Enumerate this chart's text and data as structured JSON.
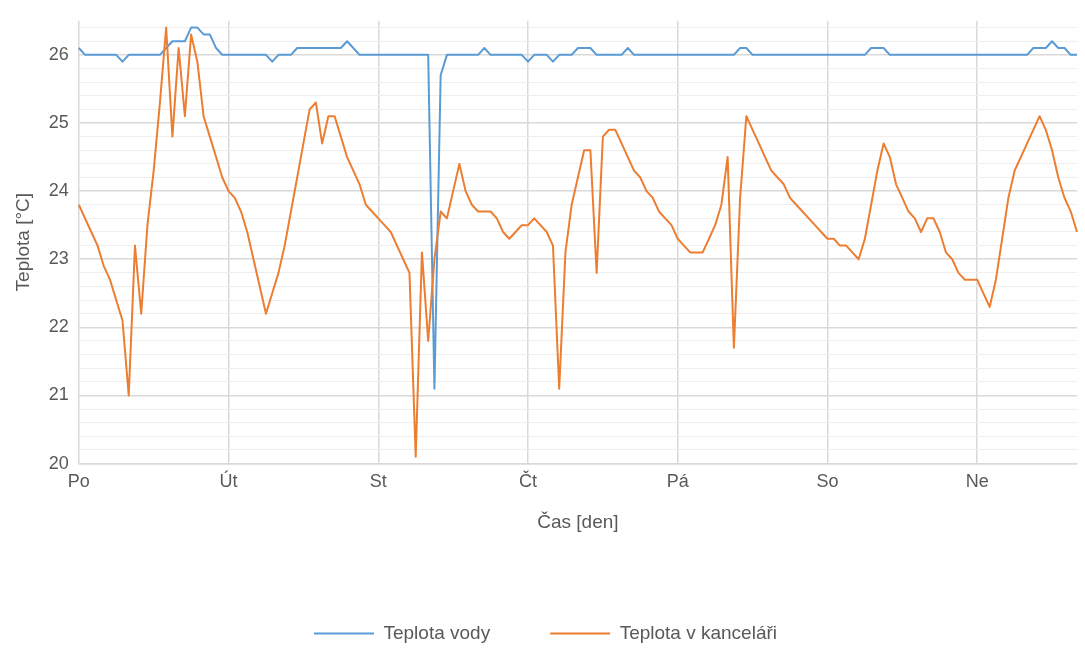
{
  "chart_data": {
    "type": "line",
    "xlabel": "Čas [den]",
    "ylabel": "Teplota [°C]",
    "categories": [
      "Po",
      null,
      null,
      null,
      null,
      null,
      null,
      null,
      null,
      null,
      null,
      null,
      null,
      null,
      null,
      null,
      null,
      null,
      null,
      null,
      null,
      null,
      null,
      null,
      "Út",
      null,
      null,
      null,
      null,
      null,
      null,
      null,
      null,
      null,
      null,
      null,
      null,
      null,
      null,
      null,
      null,
      null,
      null,
      null,
      null,
      null,
      null,
      null,
      "St",
      null,
      null,
      null,
      null,
      null,
      null,
      null,
      null,
      null,
      null,
      null,
      null,
      null,
      null,
      null,
      null,
      null,
      null,
      null,
      null,
      null,
      null,
      null,
      "Čt",
      null,
      null,
      null,
      null,
      null,
      null,
      null,
      null,
      null,
      null,
      null,
      null,
      null,
      null,
      null,
      null,
      null,
      null,
      null,
      null,
      null,
      null,
      null,
      "Pá",
      null,
      null,
      null,
      null,
      null,
      null,
      null,
      null,
      null,
      null,
      null,
      null,
      null,
      null,
      null,
      null,
      null,
      null,
      null,
      null,
      null,
      null,
      null,
      "So",
      null,
      null,
      null,
      null,
      null,
      null,
      null,
      null,
      null,
      null,
      null,
      null,
      null,
      null,
      null,
      null,
      null,
      null,
      null,
      null,
      null,
      null,
      null,
      "Ne",
      null,
      null,
      null,
      null,
      null,
      null,
      null,
      null,
      null,
      null,
      null,
      null,
      null,
      null,
      null,
      null
    ],
    "ylim": [
      20,
      26.5
    ],
    "yticks": [
      20,
      {
        "value": 20.2,
        "label": null
      },
      {
        "value": 20.4,
        "label": null
      },
      {
        "value": 20.6,
        "label": null
      },
      {
        "value": 20.8,
        "label": null
      },
      21,
      {
        "value": 21.2,
        "label": null
      },
      {
        "value": 21.4,
        "label": null
      },
      {
        "value": 21.6,
        "label": null
      },
      {
        "value": 21.8,
        "label": null
      },
      22,
      {
        "value": 22.2,
        "label": null
      },
      {
        "value": 22.4,
        "label": null
      },
      {
        "value": 22.6,
        "label": null
      },
      {
        "value": 22.8,
        "label": null
      },
      23,
      {
        "value": 23.2,
        "label": null
      },
      {
        "value": 23.4,
        "label": null
      },
      {
        "value": 23.6,
        "label": null
      },
      {
        "value": 23.8,
        "label": null
      },
      24,
      {
        "value": 24.2,
        "label": null
      },
      {
        "value": 24.4,
        "label": null
      },
      {
        "value": 24.6,
        "label": null
      },
      {
        "value": 24.8,
        "label": null
      },
      25,
      {
        "value": 25.2,
        "label": null
      },
      {
        "value": 25.4,
        "label": null
      },
      {
        "value": 25.6,
        "label": null
      },
      {
        "value": 25.8,
        "label": null
      },
      26,
      {
        "value": 26.2,
        "label": null
      },
      {
        "value": 26.4,
        "label": null
      }
    ],
    "grid": true,
    "legend": "bottom",
    "marker": "none",
    "line_style": "solid",
    "series": [
      {
        "name": "Teplota vody",
        "color": "#5b9bd5",
        "values": [
          26.1,
          26.0,
          26.0,
          26.0,
          26.0,
          26.0,
          26.0,
          25.9,
          26.0,
          26.0,
          26.0,
          26.0,
          26.0,
          26.0,
          26.1,
          26.2,
          26.2,
          26.2,
          26.4,
          26.4,
          26.3,
          26.3,
          26.1,
          26.0,
          26.0,
          26.0,
          26.0,
          26.0,
          26.0,
          26.0,
          26.0,
          25.9,
          26.0,
          26.0,
          26.0,
          26.1,
          26.1,
          26.1,
          26.1,
          26.1,
          26.1,
          26.1,
          26.1,
          26.2,
          26.1,
          26.0,
          26.0,
          26.0,
          26.0,
          26.0,
          26.0,
          26.0,
          26.0,
          26.0,
          26.0,
          26.0,
          26.0,
          21.1,
          25.7,
          26.0,
          26.0,
          26.0,
          26.0,
          26.0,
          26.0,
          26.1,
          26.0,
          26.0,
          26.0,
          26.0,
          26.0,
          26.0,
          25.9,
          26.0,
          26.0,
          26.0,
          25.9,
          26.0,
          26.0,
          26.0,
          26.1,
          26.1,
          26.1,
          26.0,
          26.0,
          26.0,
          26.0,
          26.0,
          26.1,
          26.0,
          26.0,
          26.0,
          26.0,
          26.0,
          26.0,
          26.0,
          26.0,
          26.0,
          26.0,
          26.0,
          26.0,
          26.0,
          26.0,
          26.0,
          26.0,
          26.0,
          26.1,
          26.1,
          26.0,
          26.0,
          26.0,
          26.0,
          26.0,
          26.0,
          26.0,
          26.0,
          26.0,
          26.0,
          26.0,
          26.0,
          26.0,
          26.0,
          26.0,
          26.0,
          26.0,
          26.0,
          26.0,
          26.1,
          26.1,
          26.1,
          26.0,
          26.0,
          26.0,
          26.0,
          26.0,
          26.0,
          26.0,
          26.0,
          26.0,
          26.0,
          26.0,
          26.0,
          26.0,
          26.0,
          26.0,
          26.0,
          26.0,
          26.0,
          26.0,
          26.0,
          26.0,
          26.0,
          26.0,
          26.1,
          26.1,
          26.1,
          26.2,
          26.1,
          26.1,
          26.0,
          26.0
        ]
      },
      {
        "name": "Teplota v kanceláři",
        "color": "#ed7d31",
        "values": [
          23.8,
          23.6,
          23.4,
          23.2,
          22.9,
          22.7,
          22.4,
          22.1,
          21.0,
          23.2,
          22.2,
          23.5,
          24.3,
          25.3,
          26.4,
          24.8,
          26.1,
          25.1,
          26.3,
          25.9,
          25.1,
          24.8,
          24.5,
          24.2,
          24.0,
          23.9,
          23.7,
          23.4,
          23.0,
          22.6,
          22.2,
          22.5,
          22.8,
          23.2,
          23.7,
          24.2,
          24.7,
          25.2,
          25.3,
          24.7,
          25.1,
          25.1,
          24.8,
          24.5,
          24.3,
          24.1,
          23.8,
          23.7,
          23.6,
          23.5,
          23.4,
          23.2,
          23.0,
          22.8,
          20.1,
          23.1,
          21.8,
          23.0,
          23.7,
          23.6,
          24.0,
          24.4,
          24.0,
          23.8,
          23.7,
          23.7,
          23.7,
          23.6,
          23.4,
          23.3,
          23.4,
          23.5,
          23.5,
          23.6,
          23.5,
          23.4,
          23.2,
          21.1,
          23.1,
          23.8,
          24.2,
          24.6,
          24.6,
          22.8,
          24.8,
          24.9,
          24.9,
          24.7,
          24.5,
          24.3,
          24.2,
          24.0,
          23.9,
          23.7,
          23.6,
          23.5,
          23.3,
          23.2,
          23.1,
          23.1,
          23.1,
          23.3,
          23.5,
          23.8,
          24.5,
          21.7,
          23.9,
          25.1,
          24.9,
          24.7,
          24.5,
          24.3,
          24.2,
          24.1,
          23.9,
          23.8,
          23.7,
          23.6,
          23.5,
          23.4,
          23.3,
          23.3,
          23.2,
          23.2,
          23.1,
          23.0,
          23.3,
          23.8,
          24.3,
          24.7,
          24.5,
          24.1,
          23.9,
          23.7,
          23.6,
          23.4,
          23.6,
          23.6,
          23.4,
          23.1,
          23.0,
          22.8,
          22.7,
          22.7,
          22.7,
          22.5,
          22.3,
          22.7,
          23.3,
          23.9,
          24.3,
          24.5,
          24.7,
          24.9,
          25.1,
          24.9,
          24.6,
          24.2,
          23.9,
          23.7,
          23.4
        ]
      }
    ]
  }
}
